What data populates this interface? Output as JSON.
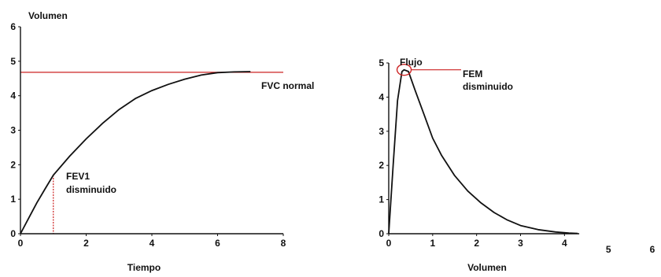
{
  "chart_data": [
    {
      "type": "line",
      "ylabel": "Volumen",
      "xlabel": "Tiempo",
      "xlim": [
        0,
        8
      ],
      "ylim": [
        0,
        6
      ],
      "xticks": [
        "0",
        "2",
        "4",
        "6",
        "8"
      ],
      "yticks": [
        "0",
        "1",
        "2",
        "3",
        "4",
        "5",
        "6"
      ],
      "series": [
        {
          "color": "#111111",
          "x": [
            0,
            0.25,
            0.5,
            0.75,
            1,
            1.5,
            2,
            2.5,
            3,
            3.5,
            4,
            4.5,
            5,
            5.5,
            6,
            6.5,
            7
          ],
          "y": [
            0,
            0.45,
            0.9,
            1.3,
            1.7,
            2.25,
            2.75,
            3.2,
            3.6,
            3.92,
            4.15,
            4.33,
            4.48,
            4.6,
            4.67,
            4.69,
            4.7
          ]
        }
      ],
      "reference_line": {
        "y": 4.68,
        "color": "#cc2222",
        "label": "FVC normal"
      },
      "marker_line": {
        "x": 1,
        "y": 1.7,
        "color": "#cc2222",
        "label_lines": [
          "FEV1",
          "disminuido"
        ]
      }
    },
    {
      "type": "line",
      "xlabel": "Volumen",
      "ylabel": "Flujo",
      "xlim": [
        0,
        6
      ],
      "ylim": [
        0,
        5
      ],
      "xticks": [
        "0",
        "1",
        "2",
        "3",
        "4",
        "5",
        "6"
      ],
      "yticks": [
        "0",
        "1",
        "2",
        "3",
        "4",
        "5"
      ],
      "series": [
        {
          "color": "#111111",
          "x": [
            0,
            0.1,
            0.2,
            0.3,
            0.35,
            0.45,
            0.6,
            0.8,
            1.0,
            1.2,
            1.5,
            1.8,
            2.1,
            2.4,
            2.7,
            3.0,
            3.4,
            3.8,
            4.1,
            4.3
          ],
          "y": [
            0,
            2.0,
            3.9,
            4.75,
            4.8,
            4.75,
            4.2,
            3.5,
            2.8,
            2.3,
            1.7,
            1.25,
            0.9,
            0.62,
            0.4,
            0.24,
            0.12,
            0.05,
            0.02,
            0.01
          ]
        }
      ],
      "peak_marker": {
        "x": 0.35,
        "y": 4.8,
        "color": "#cc2222",
        "label_lines": [
          "FEM",
          "disminuido"
        ]
      }
    }
  ]
}
